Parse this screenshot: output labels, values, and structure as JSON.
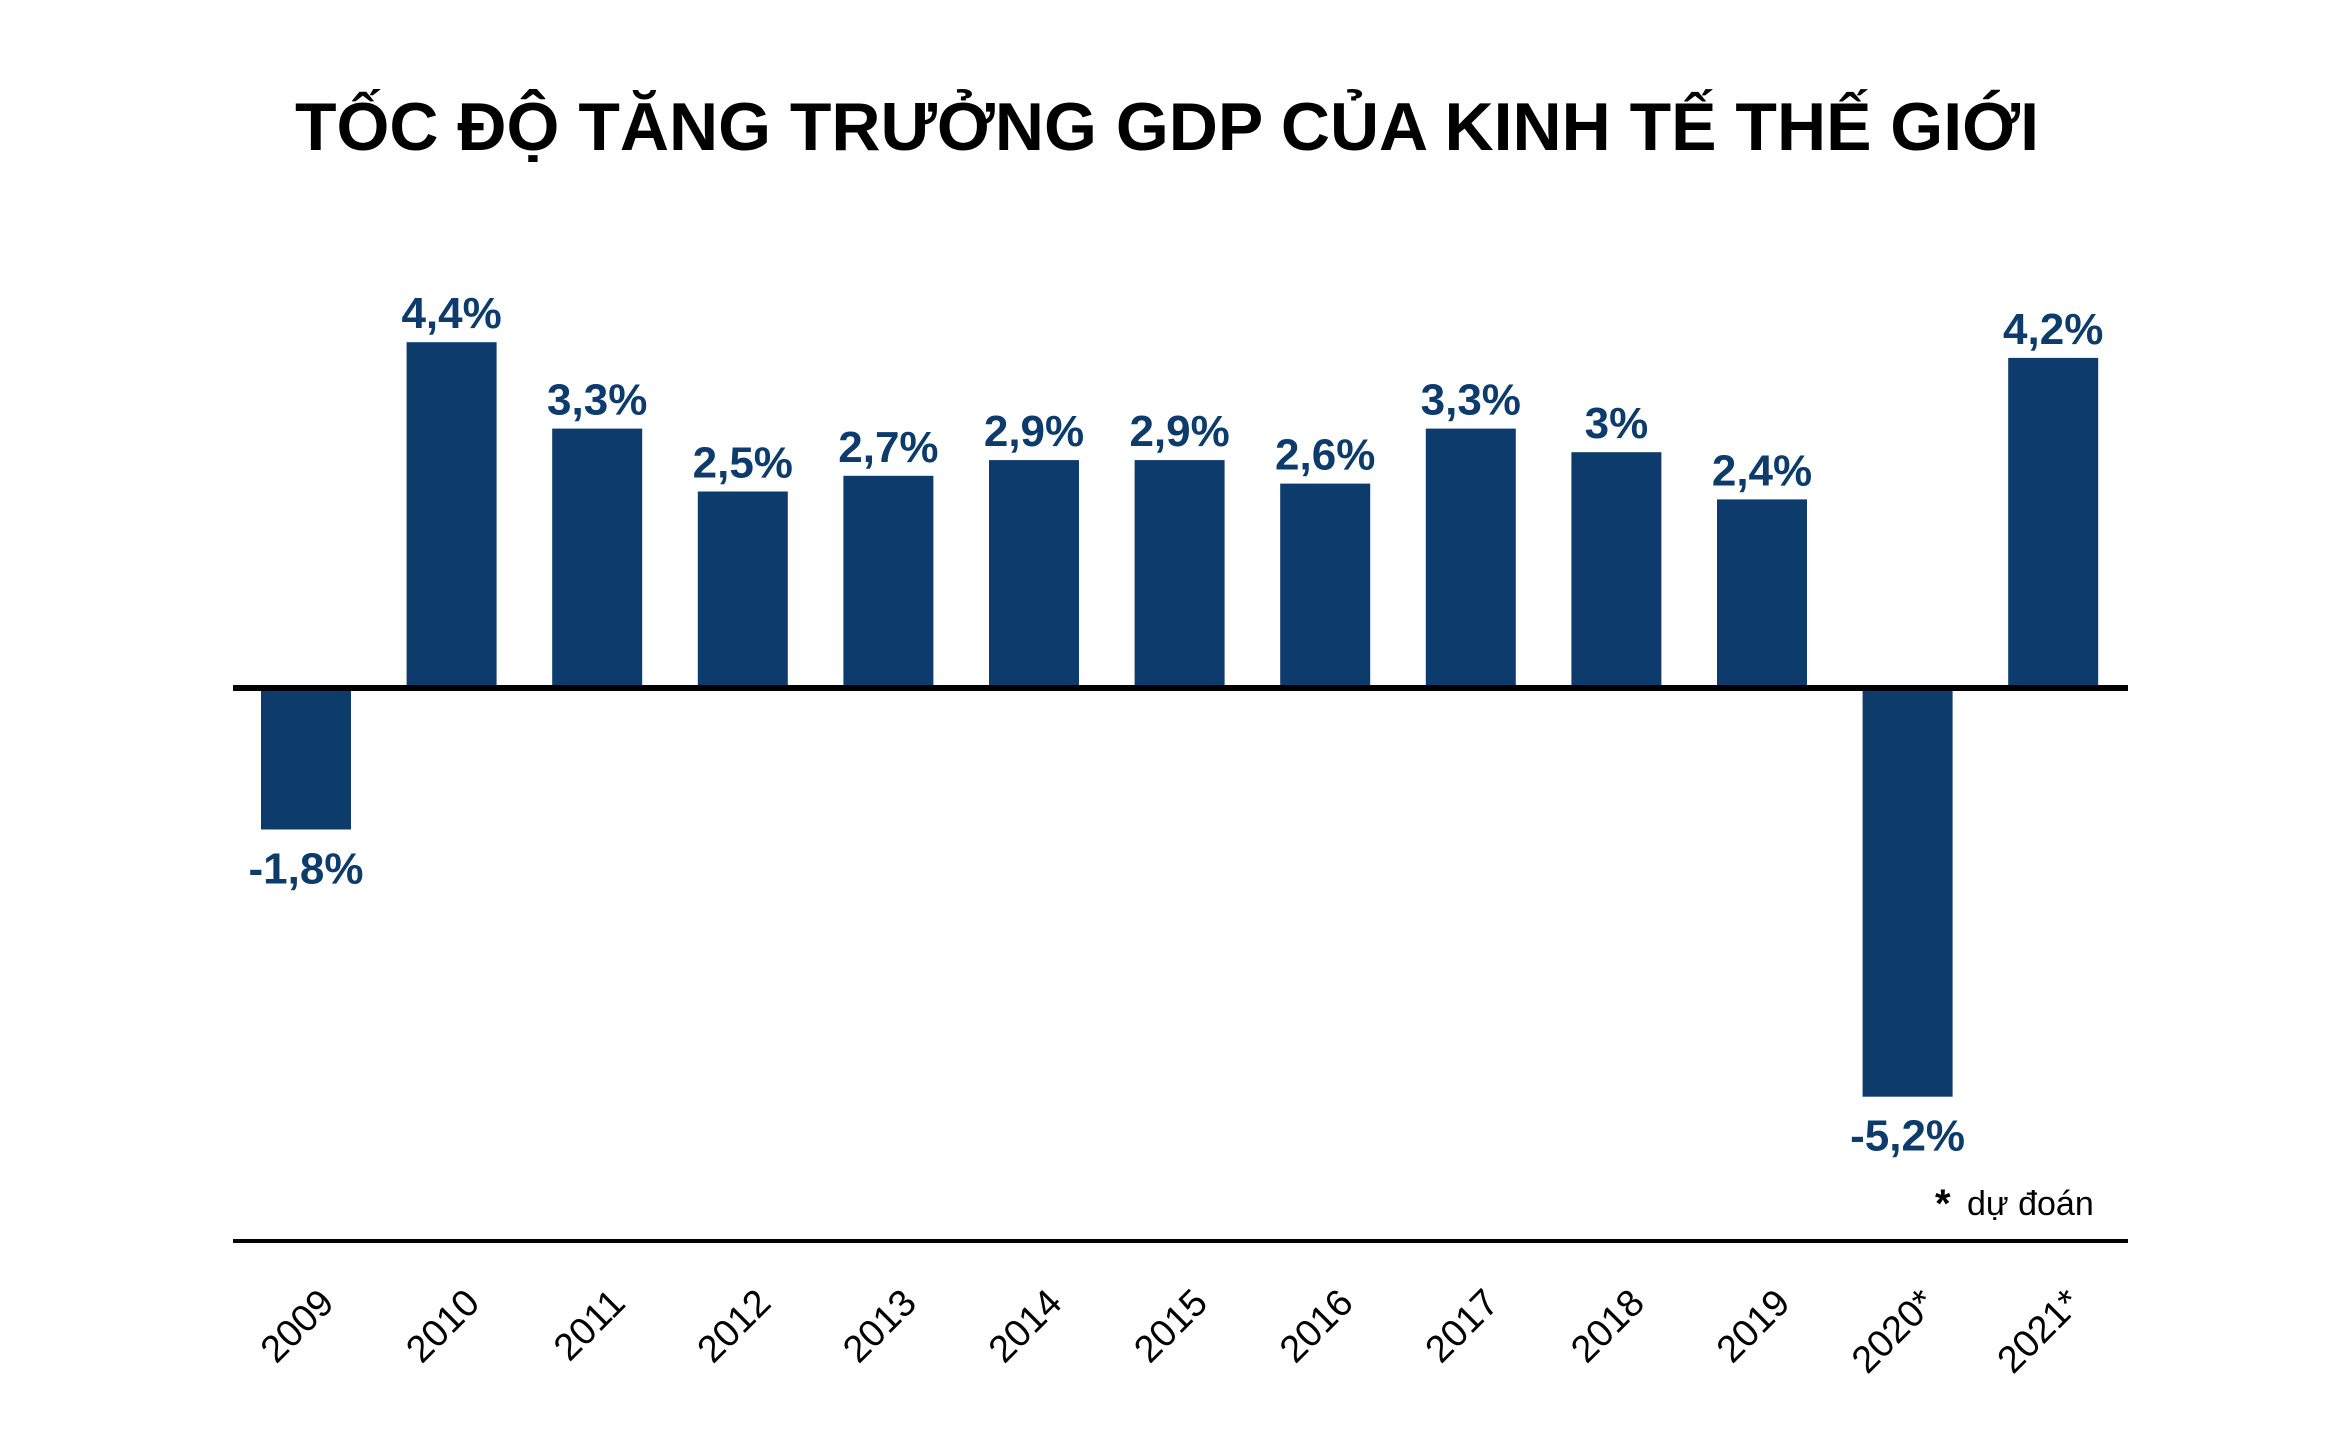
{
  "chart_data": {
    "type": "bar",
    "title": "TỐC ĐỘ TĂNG TRƯỞNG GDP CỦA KINH TẾ THẾ GIỚI",
    "categories": [
      "2009",
      "2010",
      "2011",
      "2012",
      "2013",
      "2014",
      "2015",
      "2016",
      "2017",
      "2018",
      "2019",
      "2020*",
      "2021*"
    ],
    "values": [
      -1.8,
      4.4,
      3.3,
      2.5,
      2.7,
      2.9,
      2.9,
      2.6,
      3.3,
      3.0,
      2.4,
      -5.2,
      4.2
    ],
    "value_labels": [
      "-1,8%",
      "4,4%",
      "3,3%",
      "2,5%",
      "2,7%",
      "2,9%",
      "2,9%",
      "2,6%",
      "3,3%",
      "3%",
      "2,4%",
      "-5,2%",
      "4,2%"
    ],
    "xlabel": "",
    "ylabel": "",
    "ylim": [
      -7.1,
      5.6
    ],
    "grid": false,
    "legend": "none",
    "unit": "%",
    "bar_color": "#0c3b6c",
    "label_color": "#0c3b6c",
    "axis_color": "#000000",
    "footnote": {
      "marker": "*",
      "text": "dự đoán"
    }
  }
}
